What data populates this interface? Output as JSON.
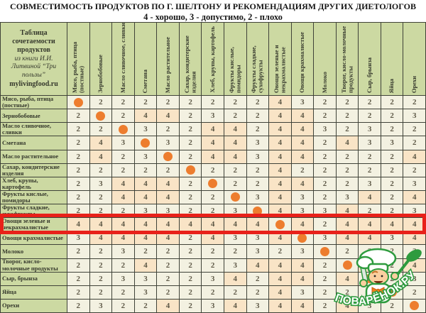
{
  "title": "СОВМЕСТИМОСТЬ ПРОДУКТОВ ПО Г. ШЕЛТОНУ И РЕКОМЕНДАЦИЯМ ДРУГИХ ДИЕТОЛОГОВ",
  "subtitle": "4 - хорошо, 3 - допустимо, 2 - плохо",
  "corner": {
    "heading": "Таблица сочетаемости продуктов",
    "source": "из книги И.И. Литвиной “Три пользы”",
    "site": "mylivingfood.ru"
  },
  "watermark": {
    "arc_text": "ПОВАРЁНОК.РУ",
    "mascot": "chef-boy-with-ladle-and-knife"
  },
  "colors": {
    "header_green": "#ccd9a2",
    "cell_cream": "#f3f1e1",
    "good_highlight_peach": "#f9e4c6",
    "diagonal_dot_orange": "#ed7d2e",
    "highlight_frame_red": "#e8211a",
    "logo_green": "#2e9b3e"
  },
  "chart_data": {
    "type": "heatmap",
    "title": "СОВМЕСТИМОСТЬ ПРОДУКТОВ ПО Г. ШЕЛТОНУ И РЕКОМЕНДАЦИЯМ ДРУГИХ ДИЕТОЛОГОВ",
    "legend": "4 - хорошо, 3 - допустимо, 2 - плохо",
    "diagonal_marker": "orange-dot (same product)",
    "highlighted_row": "Овощи зеленые и некрахмалистые",
    "col_labels": [
      "Мясо, рыба, птица (постные)",
      "Зернобобовые",
      "Масло сливочное, сливки",
      "Сметана",
      "Масло растительное",
      "Сахар, кондитерские изделия",
      "Хлеб, крупы, картофель",
      "Фрукты кислые, помидоры",
      "Фрукты сладкие, сухофрукты",
      "Овощи зеленые и некрахмалистые",
      "Овощи крахмалистые",
      "Молоко",
      "Творог, кисло-молочные продукты",
      "Сыр, брынза",
      "Яйца",
      "Орехи"
    ],
    "row_labels": [
      "Мясо, рыба, птица (постные)",
      "Зернобобовые",
      "Масло сливочное, сливки",
      "Сметана",
      "Масло растительное",
      "Сахар, кондитерские изделия",
      "Хлеб, крупы, картофель",
      "Фрукты кислые, помидоры",
      "Фрукты сладкие, сухофрукты",
      "Овощи зеленые и некрахмалистые",
      "Овощи крахмалистые",
      "Молоко",
      "Творог, кисло-молочные продукты",
      "Сыр, брынза",
      "Яйца",
      "Орехи"
    ],
    "matrix": [
      [
        null,
        2,
        2,
        2,
        2,
        2,
        2,
        2,
        2,
        4,
        3,
        2,
        2,
        2,
        2,
        2
      ],
      [
        2,
        null,
        2,
        4,
        4,
        2,
        3,
        2,
        2,
        4,
        4,
        2,
        2,
        2,
        2,
        3
      ],
      [
        2,
        2,
        null,
        3,
        2,
        2,
        4,
        4,
        2,
        4,
        4,
        3,
        2,
        3,
        2,
        2
      ],
      [
        2,
        4,
        3,
        null,
        3,
        2,
        4,
        4,
        3,
        4,
        4,
        2,
        4,
        3,
        3,
        2
      ],
      [
        2,
        4,
        2,
        3,
        null,
        2,
        4,
        4,
        3,
        4,
        4,
        2,
        2,
        2,
        2,
        4
      ],
      [
        2,
        2,
        2,
        2,
        2,
        null,
        2,
        2,
        2,
        4,
        2,
        2,
        2,
        2,
        2,
        2
      ],
      [
        2,
        3,
        4,
        4,
        4,
        2,
        null,
        2,
        2,
        4,
        4,
        2,
        2,
        3,
        2,
        3
      ],
      [
        2,
        2,
        4,
        4,
        4,
        2,
        2,
        null,
        3,
        4,
        3,
        2,
        3,
        4,
        2,
        4
      ],
      [
        2,
        2,
        2,
        3,
        3,
        2,
        2,
        3,
        null,
        4,
        3,
        3,
        4,
        2,
        2,
        3
      ],
      [
        4,
        4,
        4,
        4,
        4,
        4,
        4,
        4,
        4,
        null,
        4,
        2,
        4,
        4,
        4,
        4
      ],
      [
        3,
        4,
        4,
        4,
        4,
        2,
        4,
        3,
        3,
        4,
        null,
        3,
        4,
        4,
        3,
        4
      ],
      [
        2,
        2,
        3,
        2,
        2,
        2,
        2,
        2,
        3,
        2,
        3,
        null,
        2,
        2,
        2,
        2
      ],
      [
        2,
        2,
        2,
        4,
        2,
        2,
        2,
        3,
        4,
        4,
        4,
        2,
        null,
        4,
        2,
        4
      ],
      [
        2,
        2,
        3,
        3,
        2,
        2,
        3,
        4,
        2,
        4,
        4,
        2,
        4,
        null,
        2,
        3
      ],
      [
        2,
        2,
        2,
        3,
        2,
        2,
        2,
        2,
        2,
        4,
        3,
        2,
        2,
        2,
        null,
        2
      ],
      [
        2,
        3,
        2,
        2,
        4,
        2,
        3,
        4,
        3,
        4,
        4,
        2,
        4,
        3,
        2,
        null
      ]
    ]
  }
}
